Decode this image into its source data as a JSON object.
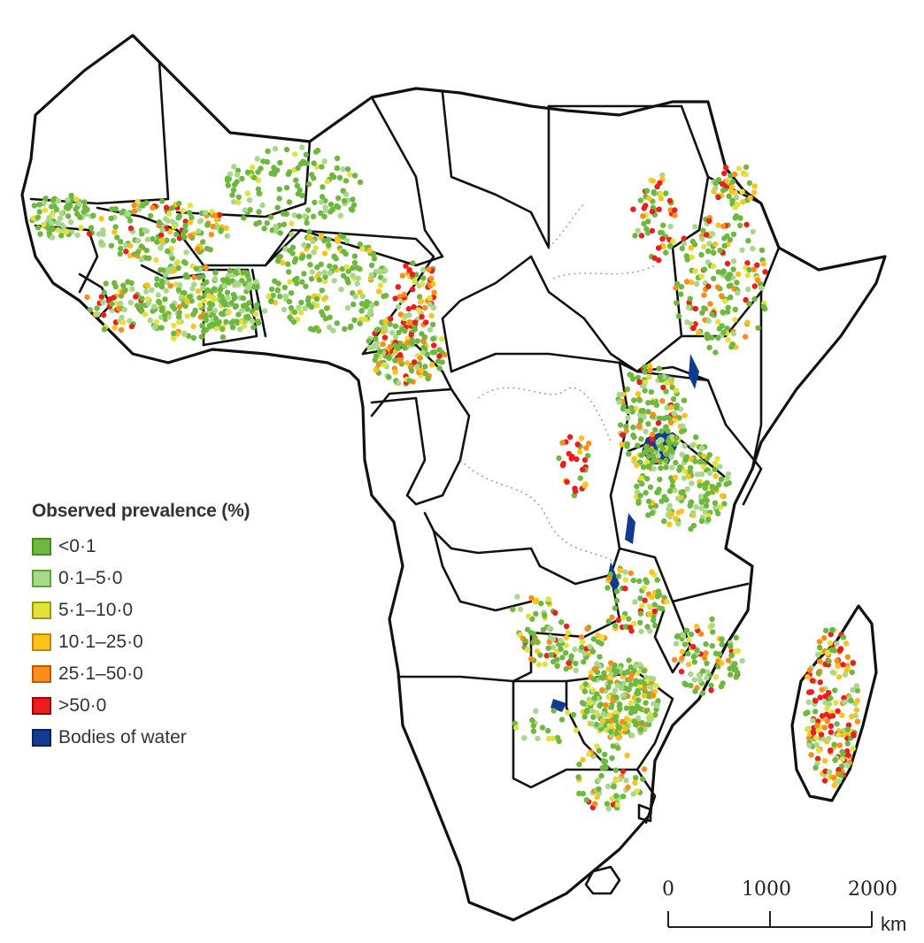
{
  "legend": {
    "title": "Observed prevalence (%)",
    "items": [
      {
        "label": "<0·1",
        "color": "#6fb83f",
        "border": "#3f8f1f"
      },
      {
        "label": "0·1–5·0",
        "color": "#a8d88a",
        "border": "#5aa43a"
      },
      {
        "label": "5·1–10·0",
        "color": "#e2e23a",
        "border": "#9a9a10"
      },
      {
        "label": "10·1–25·0",
        "color": "#ffc21a",
        "border": "#c08a00"
      },
      {
        "label": "25·1–50·0",
        "color": "#ff8c1a",
        "border": "#c05a00"
      },
      {
        "label": ">50·0",
        "color": "#ee1c1c",
        "border": "#a00000"
      },
      {
        "label": "Bodies of water",
        "color": "#123a8f",
        "border": "#0a2160"
      }
    ]
  },
  "scale_bar": {
    "ticks": [
      "0",
      "1000",
      "2000"
    ],
    "unit": "km"
  },
  "colors": {
    "green": "#6fb83f",
    "light_green": "#a8d88a",
    "yellow": "#e2e23a",
    "amber": "#ffc21a",
    "orange": "#ff8c1a",
    "red": "#ee1c1c",
    "water": "#123a8f"
  }
}
